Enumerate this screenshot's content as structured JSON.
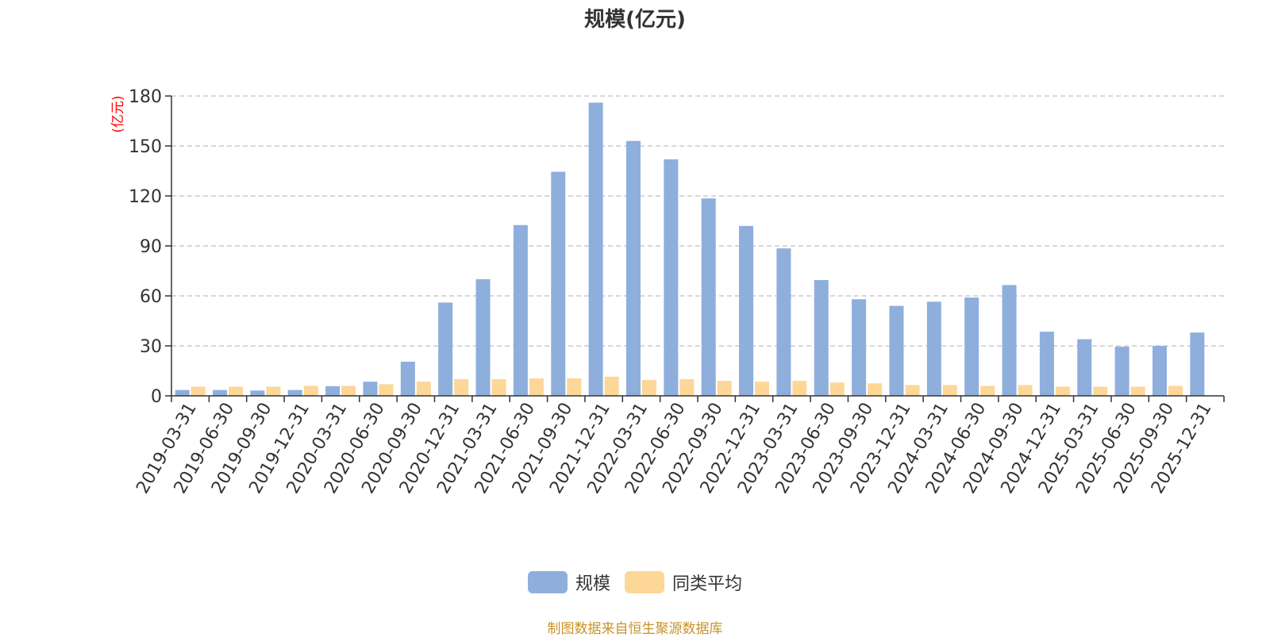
{
  "chart_data": {
    "type": "bar",
    "title": "规模(亿元)",
    "ylabel": "(亿元)",
    "xlabel": "",
    "ylim": [
      0,
      180
    ],
    "yticks": [
      0,
      30,
      60,
      90,
      120,
      150,
      180
    ],
    "grid": true,
    "legend_position": "bottom",
    "categories": [
      "2019-03-31",
      "2019-06-30",
      "2019-09-30",
      "2019-12-31",
      "2020-03-31",
      "2020-06-30",
      "2020-09-30",
      "2020-12-31",
      "2021-03-31",
      "2021-06-30",
      "2021-09-30",
      "2021-12-31",
      "2022-03-31",
      "2022-06-30",
      "2022-09-30",
      "2022-12-31",
      "2023-03-31",
      "2023-06-30",
      "2023-09-30",
      "2023-12-31",
      "2024-03-31",
      "2024-06-30",
      "2024-09-30",
      "2024-12-31",
      "2025-03-31",
      "2025-06-30",
      "2025-09-30",
      "2025-12-31"
    ],
    "series": [
      {
        "name": "规模",
        "color": "#8eaedc",
        "values": [
          3.5,
          3.5,
          3.2,
          3.5,
          5.8,
          8.5,
          20.5,
          56.0,
          70.0,
          102.5,
          134.5,
          176.0,
          153.0,
          142.0,
          118.5,
          102.0,
          88.5,
          69.5,
          58.0,
          54.0,
          56.5,
          59.0,
          66.5,
          38.5,
          34.0,
          29.5,
          30.0,
          38.0
        ]
      },
      {
        "name": "同类平均",
        "color": "#fdd797",
        "values": [
          5.5,
          5.5,
          5.5,
          6.0,
          6.0,
          7.0,
          8.5,
          10.0,
          10.0,
          10.5,
          10.5,
          11.5,
          9.5,
          10.0,
          9.0,
          8.5,
          9.0,
          8.0,
          7.5,
          6.5,
          6.5,
          6.0,
          6.5,
          5.5,
          5.5,
          5.5,
          6.0,
          null
        ]
      }
    ]
  },
  "source_note": "制图数据来自恒生聚源数据库"
}
